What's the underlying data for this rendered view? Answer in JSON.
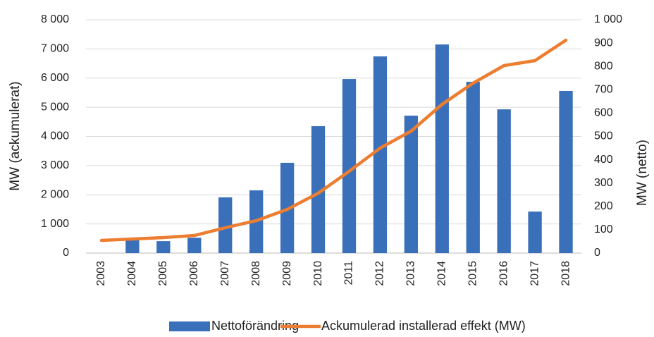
{
  "chart_data": {
    "type": "bar-line",
    "categories": [
      "2003",
      "2004",
      "2005",
      "2006",
      "2007",
      "2008",
      "2009",
      "2010",
      "2011",
      "2012",
      "2013",
      "2014",
      "2015",
      "2016",
      "2017",
      "2018"
    ],
    "series": [
      {
        "name": "Nettoförändring",
        "type": "bar",
        "axis": "y2",
        "color": "#3a70ba",
        "values": [
          0,
          60,
          51,
          66,
          239,
          269,
          387,
          544,
          746,
          843,
          589,
          894,
          734,
          616,
          178,
          695
        ]
      },
      {
        "name": "Ackumulerad installerad effekt (MW)",
        "type": "line",
        "axis": "y",
        "color": "#ed7d31",
        "values": [
          435,
          483,
          532,
          604,
          870,
          1112,
          1499,
          2054,
          2804,
          3601,
          4181,
          5100,
          5825,
          6429,
          6598,
          7299
        ]
      }
    ],
    "ylabel": "MW (ackumulerat)",
    "y2label": "MW (netto)",
    "ylim": [
      0,
      8000
    ],
    "yticks": [
      0,
      {
        "value": 1000,
        "label": "1 000"
      },
      {
        "value": 2000,
        "label": "2 000"
      },
      {
        "value": 3000,
        "label": "3 000"
      },
      {
        "value": 4000,
        "label": "4 000"
      },
      {
        "value": 5000,
        "label": "5 000"
      },
      {
        "value": 6000,
        "label": "6 000"
      },
      {
        "value": 7000,
        "label": "7 000"
      },
      {
        "value": 8000,
        "label": "8 000"
      }
    ],
    "y2lim": [
      0,
      1000
    ],
    "y2ticks": [
      0,
      100,
      200,
      300,
      400,
      500,
      600,
      700,
      800,
      900,
      {
        "value": 1000,
        "label": "1 000"
      }
    ],
    "grid": true,
    "legend": "bottom"
  }
}
